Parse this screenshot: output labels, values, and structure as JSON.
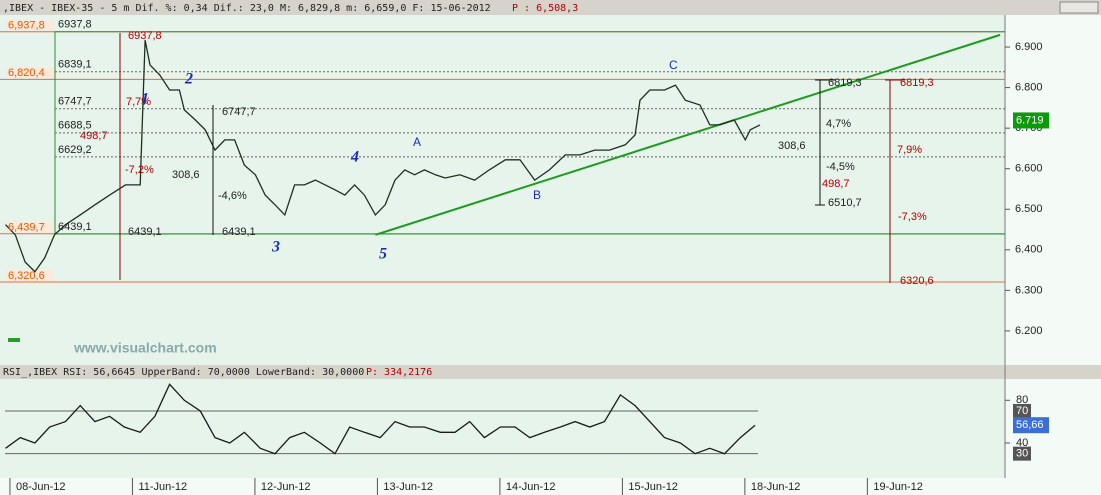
{
  "header": {
    "main": ",IBEX - IBEX-35 - 5 m Dif. %: 0,34 Dif.: 23,0 M: 6,829,8 m: 6,659,0 F: 15-06-2012",
    "price": "P : 6,508,3"
  },
  "watermark": "www.visualchart.com",
  "chart_data": [
    {
      "type": "line",
      "color": "#1f2f1f",
      "x": [
        -0.02,
        0.06,
        0.14,
        0.22,
        0.3,
        0.38,
        0.47,
        0.59,
        0.71,
        0.83,
        0.96,
        1.08,
        1.12,
        1.16,
        1.24,
        1.32,
        1.4,
        1.44,
        1.53,
        1.61,
        1.69,
        1.77,
        1.85,
        1.93,
        2.02,
        2.1,
        2.18,
        2.26,
        2.34,
        2.42,
        2.51,
        2.59,
        2.67,
        2.75,
        2.83,
        2.91,
        3.0,
        3.08,
        3.16,
        3.24,
        3.32,
        3.4,
        3.49,
        3.57,
        3.69,
        3.81,
        3.93,
        4.06,
        4.18,
        4.3,
        4.42,
        4.55,
        4.67,
        4.79,
        4.91,
        5.04,
        5.12,
        5.16,
        5.24,
        5.36,
        5.45,
        5.53,
        5.65,
        5.73,
        5.81,
        5.93,
        6.02,
        6.06,
        6.14
      ],
      "values": [
        6462,
        6437,
        6370,
        6346,
        6380,
        6437,
        6462,
        6486,
        6511,
        6535,
        6560,
        6560,
        6917,
        6856,
        6831,
        6794,
        6794,
        6745,
        6720,
        6696,
        6646,
        6671,
        6671,
        6609,
        6585,
        6535,
        6511,
        6486,
        6560,
        6560,
        6572,
        6560,
        6548,
        6535,
        6560,
        6535,
        6486,
        6511,
        6572,
        6597,
        6585,
        6597,
        6585,
        6577,
        6585,
        6572,
        6597,
        6622,
        6622,
        6572,
        6597,
        6634,
        6634,
        6646,
        6646,
        6659,
        6683,
        6769,
        6794,
        6794,
        6806,
        6769,
        6757,
        6708,
        6708,
        6720,
        6671,
        6696,
        6708
      ],
      "xlim": [
        -0.065,
        8.14
      ],
      "ylim": [
        6116,
        6979
      ],
      "yticks": [
        {
          "value": 6200,
          "label": "6.200"
        },
        {
          "value": 6300,
          "label": "6.300"
        },
        {
          "value": 6400,
          "label": "6.400"
        },
        {
          "value": 6500,
          "label": "6.500"
        },
        {
          "value": 6600,
          "label": "6.600"
        },
        {
          "value": 6700,
          "label": "6.700"
        },
        {
          "value": 6800,
          "label": "6.800"
        },
        {
          "value": 6900,
          "label": "6.900"
        }
      ],
      "last_value": {
        "value": 6719,
        "label": "6.719"
      },
      "levels": [
        {
          "value": 6937.8,
          "label": "6,937,8"
        },
        {
          "value": 6820.4,
          "label": "6,820,4"
        },
        {
          "value": 6439.7,
          "label": "6,439,7"
        },
        {
          "value": 6320.6,
          "label": "6,320,6"
        }
      ],
      "fib_levels": [
        {
          "value": 6937.8,
          "label": "6937,8"
        },
        {
          "value": 6839.1,
          "label": "6839,1"
        },
        {
          "value": 6747.7,
          "label": "6747,7"
        },
        {
          "value": 6688.5,
          "label": "6688,5"
        },
        {
          "value": 6629.2,
          "label": "6629,2"
        },
        {
          "value": 6439.1,
          "label": "6439,1"
        }
      ],
      "trendline": {
        "x": [
          3.0,
          8.1
        ],
        "values": [
          6437,
          6930
        ]
      },
      "annotations": [
        "6937,8",
        "7,7%",
        "498,7",
        "-7,2%",
        "6439,1",
        "6747,7",
        "308,6",
        "-4,6%",
        "6439,1",
        "6819,3",
        "4,7%",
        "308,6",
        "-4,5%",
        "6510,7",
        "6819,3",
        "7,9%",
        "498,7",
        "-7,3%",
        "6320,6"
      ],
      "waves": [
        "1",
        "2",
        "3",
        "4",
        "5"
      ],
      "abc": [
        "A",
        "B",
        "C"
      ]
    },
    {
      "type": "line",
      "title": "RSI_,IBEX RSI: 56,6645 UpperBand: 70,0000 LowerBand: 30,0000",
      "title_price": "P: 334,2176",
      "color": "#1a1a1a",
      "x": [
        -0.02,
        0.1,
        0.22,
        0.34,
        0.47,
        0.59,
        0.71,
        0.83,
        0.95,
        1.08,
        1.2,
        1.32,
        1.44,
        1.57,
        1.69,
        1.81,
        1.93,
        2.06,
        2.18,
        2.3,
        2.42,
        2.55,
        2.67,
        2.79,
        2.91,
        3.04,
        3.16,
        3.28,
        3.4,
        3.53,
        3.65,
        3.77,
        3.89,
        4.02,
        4.14,
        4.26,
        4.38,
        4.51,
        4.63,
        4.75,
        4.87,
        5.0,
        5.12,
        5.24,
        5.36,
        5.49,
        5.61,
        5.73,
        5.85,
        5.98,
        6.1
      ],
      "values": [
        35,
        45,
        40,
        55,
        60,
        75,
        60,
        65,
        55,
        50,
        65,
        95,
        80,
        70,
        45,
        40,
        50,
        35,
        30,
        45,
        50,
        40,
        30,
        55,
        50,
        45,
        60,
        55,
        55,
        50,
        50,
        60,
        45,
        55,
        55,
        45,
        50,
        55,
        60,
        55,
        60,
        85,
        75,
        60,
        45,
        40,
        30,
        35,
        30,
        45,
        56.66
      ],
      "xlim": [
        -0.065,
        8.14
      ],
      "ylim": [
        10,
        99
      ],
      "yticks": [
        40,
        80
      ],
      "upper_band": 70,
      "lower_band": 30,
      "last_value": {
        "value": 56.66,
        "label": "56,66"
      },
      "xticks": [
        {
          "value": 0,
          "label": "08-Jun-12"
        },
        {
          "value": 1,
          "label": "11-Jun-12"
        },
        {
          "value": 2,
          "label": "12-Jun-12"
        },
        {
          "value": 3,
          "label": "13-Jun-12"
        },
        {
          "value": 4,
          "label": "14-Jun-12"
        },
        {
          "value": 5,
          "label": "15-Jun-12"
        },
        {
          "value": 6,
          "label": "18-Jun-12"
        },
        {
          "value": 7,
          "label": "19-Jun-12"
        }
      ]
    }
  ]
}
